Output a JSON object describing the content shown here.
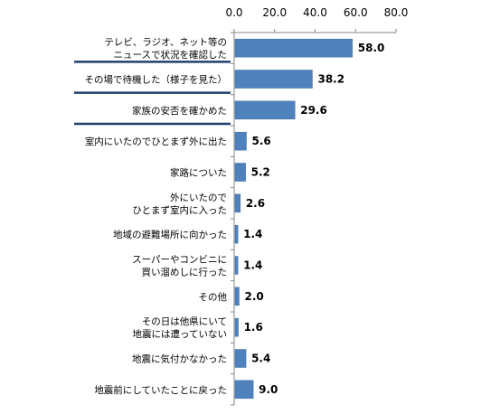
{
  "chart_data": {
    "type": "bar",
    "orientation": "horizontal",
    "categories": [
      [
        "テレビ、ラジオ、ネット等の",
        "ニュースで状況を確認した"
      ],
      [
        "その場で待機した（様子を見た）"
      ],
      [
        "家族の安否を確かめた"
      ],
      [
        "室内にいたのでひとまず外に出た"
      ],
      [
        "家路についた"
      ],
      [
        "外にいたので",
        "ひとまず室内に入った"
      ],
      [
        "地域の避難場所に向かった"
      ],
      [
        "スーパーやコンビニに",
        "買い溜めしに行った"
      ],
      [
        "その他"
      ],
      [
        "その日は他県にいて",
        "地震には遭っていない"
      ],
      [
        "地震に気付かなかった"
      ],
      [
        "地震前にしていたことに戻った"
      ]
    ],
    "values": [
      58.0,
      38.2,
      29.6,
      5.6,
      5.2,
      2.6,
      1.4,
      1.4,
      2.0,
      1.6,
      5.4,
      9.0
    ],
    "value_labels": [
      "58.0",
      "38.2",
      "29.6",
      "5.6",
      "5.2",
      "2.6",
      "1.4",
      "1.4",
      "2.0",
      "1.6",
      "5.4",
      "9.0"
    ],
    "xlim": [
      0,
      80
    ],
    "x_ticks": [
      "0.0",
      "20.0",
      "40.0",
      "60.0",
      "80.0"
    ],
    "x_axis_position": "top",
    "grid": false,
    "legend": "none",
    "highlighted_categories": [
      0,
      1,
      2
    ],
    "colors": {
      "bar": "#4f81bd",
      "bar_stroke": "#3f6f9f",
      "axis": "#868686",
      "text": "#000000",
      "underline": "#1f3f6f"
    }
  }
}
